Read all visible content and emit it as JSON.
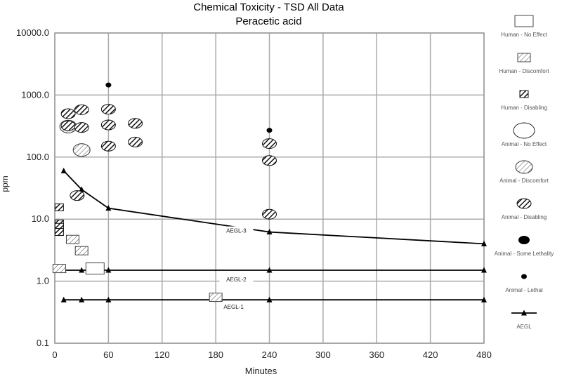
{
  "chart_data": {
    "type": "scatter",
    "title": "Chemical Toxicity - TSD All Data",
    "subtitle": "Peracetic acid",
    "xlabel": "Minutes",
    "ylabel": "ppm",
    "xlim": [
      0,
      480
    ],
    "ylim": [
      0.1,
      10000
    ],
    "y_scale": "log",
    "grid": true,
    "legend_position": "right",
    "x_ticks": [
      "0",
      "60",
      "120",
      "180",
      "240",
      "300",
      "360",
      "420",
      "480"
    ],
    "y_ticks": [
      "0.1",
      "1.0",
      "10.0",
      "100.0",
      "1000.0",
      "10000.0"
    ],
    "legend": [
      {
        "key": "human_no_effect",
        "label": "Human - No Effect"
      },
      {
        "key": "human_discomfort",
        "label": "Human - Discomfort"
      },
      {
        "key": "human_disabling",
        "label": "Human - Disabling"
      },
      {
        "key": "animal_no_effect",
        "label": "Animal - No Effect"
      },
      {
        "key": "animal_discomfort",
        "label": "Animal - Discomfort"
      },
      {
        "key": "animal_disabling",
        "label": "Animal - Disabling"
      },
      {
        "key": "animal_some_lethality",
        "label": "Animal - Some Lethality"
      },
      {
        "key": "animal_lethal",
        "label": "Animal - Lethal"
      },
      {
        "key": "aegl",
        "label": "AEGL"
      }
    ],
    "points": {
      "human_no_effect": [
        [
          45,
          1.6
        ]
      ],
      "human_discomfort": [
        [
          5,
          1.6
        ],
        [
          20,
          4.7
        ],
        [
          30,
          3.1
        ],
        [
          180,
          0.55
        ]
      ],
      "human_disabling": [
        [
          5,
          15.5
        ],
        [
          5,
          8.5
        ],
        [
          5,
          7.5
        ],
        [
          5,
          6.2
        ]
      ],
      "animal_discomfort": [
        [
          15,
          310
        ],
        [
          30,
          130
        ]
      ],
      "animal_disabling": [
        [
          15,
          500
        ],
        [
          15,
          320
        ],
        [
          30,
          580
        ],
        [
          30,
          300
        ],
        [
          60,
          590
        ],
        [
          60,
          330
        ],
        [
          60,
          150
        ],
        [
          90,
          350
        ],
        [
          90,
          175
        ],
        [
          25,
          24
        ],
        [
          240,
          165
        ],
        [
          240,
          88
        ],
        [
          240,
          12
        ]
      ],
      "animal_lethal": [
        [
          60,
          1450
        ],
        [
          240,
          270
        ]
      ]
    },
    "aegl_lines": [
      {
        "name": "AEGL-3",
        "points": [
          [
            10,
            60
          ],
          [
            30,
            30
          ],
          [
            60,
            15
          ],
          [
            240,
            6.2
          ],
          [
            480,
            4
          ]
        ]
      },
      {
        "name": "AEGL-2",
        "points": [
          [
            10,
            1.5
          ],
          [
            30,
            1.5
          ],
          [
            60,
            1.5
          ],
          [
            240,
            1.5
          ],
          [
            480,
            1.5
          ]
        ]
      },
      {
        "name": "AEGL-1",
        "points": [
          [
            10,
            0.5
          ],
          [
            30,
            0.5
          ],
          [
            60,
            0.5
          ],
          [
            240,
            0.5
          ],
          [
            480,
            0.5
          ]
        ]
      }
    ],
    "aegl_label_positions": [
      [
        203,
        6.2
      ],
      [
        203,
        1.02
      ],
      [
        200,
        0.37
      ]
    ]
  }
}
